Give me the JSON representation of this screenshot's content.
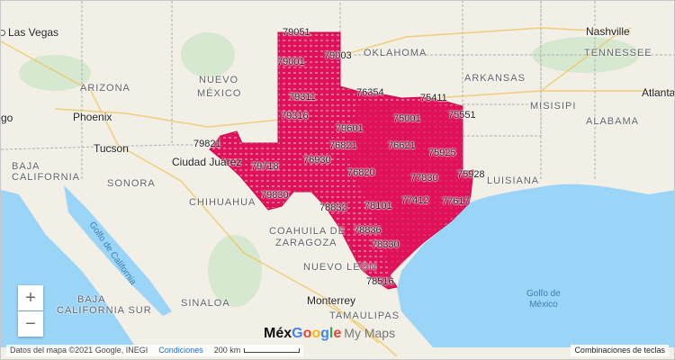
{
  "map": {
    "colors": {
      "land": "#f1efe6",
      "water": "#9ad4f7",
      "zip_fill": "#e0105a",
      "zip_light": "#f2a7bd",
      "border": "#b0b0b0"
    },
    "region_labels": [
      "OKLAHOMA",
      "ARKANSAS",
      "TENNESSEE",
      "MISISIPI",
      "ALABAMA",
      "LUISIANA",
      "ARIZONA",
      "NUEVO",
      "MÉXICO",
      "BAJA",
      "CALIFORNIA",
      "SONORA",
      "CHIHUAHUA",
      "COAHUILA DE",
      "ZARAGOZA",
      "NUEVO LEÓN",
      "SINALOA",
      "TAMAULIPAS",
      "BAJA",
      "CALIFORNIA SUR"
    ],
    "cities": [
      "Las Vegas",
      "Nashville",
      "Atlanta",
      "Phoenix",
      "Tucson",
      "Ciudad Juárez",
      "Monterrey",
      "go",
      "Méx"
    ],
    "water_labels": [
      "Golfo de California",
      "Golfo de",
      "México"
    ],
    "zip_labels": [
      "79051",
      "79003",
      "79001",
      "76354",
      "75411",
      "79311",
      "75551",
      "79316",
      "75001",
      "79601",
      "79821",
      "76821",
      "76621",
      "75925",
      "76930",
      "79718",
      "76820",
      "77830",
      "75928",
      "79830",
      "78832",
      "78101",
      "77412",
      "77617",
      "78836",
      "78330",
      "78516"
    ]
  },
  "controls": {
    "zoom_in": "+",
    "zoom_out": "−"
  },
  "branding": {
    "prefix": "Méx",
    "google": "Google",
    "product": "My Maps"
  },
  "footer": {
    "attribution": "Datos del mapa ©2021 Google, INEGI",
    "terms": "Condiciones",
    "scale": "200 km",
    "shortcuts": "Combinaciones de teclas"
  }
}
